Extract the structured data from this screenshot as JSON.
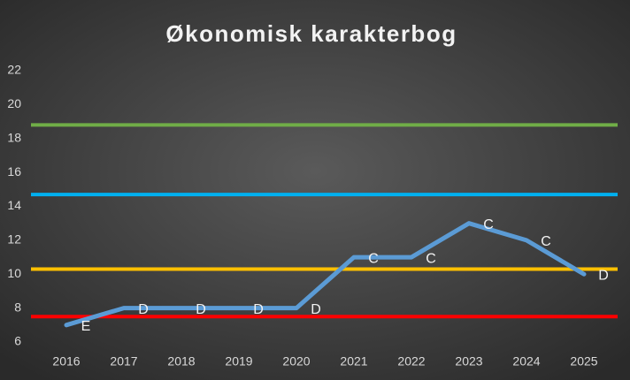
{
  "chart_data": {
    "type": "line",
    "title": "Økonomisk karakterbog",
    "categories": [
      "2016",
      "2017",
      "2018",
      "2019",
      "2020",
      "2021",
      "2022",
      "2023",
      "2024",
      "2025"
    ],
    "series": [
      {
        "color": "#5b9bd5",
        "values": [
          7,
          8,
          8,
          8,
          8,
          11,
          11,
          13,
          12,
          10
        ],
        "point_labels": [
          "E",
          "D",
          "D",
          "D",
          "D",
          "C",
          "C",
          "C",
          "C",
          "D"
        ]
      }
    ],
    "reference_lines": [
      {
        "value": 18.8,
        "color": "#70ad47"
      },
      {
        "value": 14.7,
        "color": "#00b0f0"
      },
      {
        "value": 10.3,
        "color": "#ffc000"
      },
      {
        "value": 7.5,
        "color": "#ff0000"
      }
    ],
    "ylim": [
      6,
      22
    ],
    "yticks": [
      6,
      8,
      10,
      12,
      14,
      16,
      18,
      20,
      22
    ],
    "grid": false
  }
}
